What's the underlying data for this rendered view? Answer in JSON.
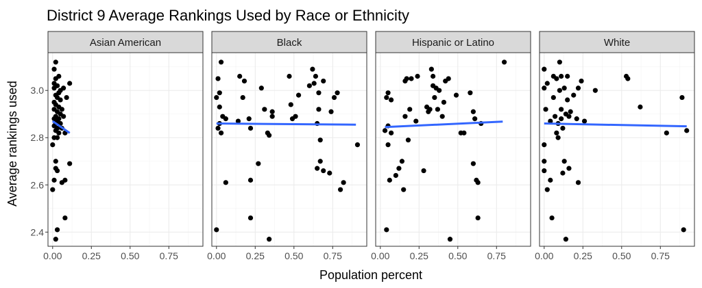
{
  "chart_data": {
    "type": "scatter",
    "title": "District 9 Average Rankings Used by Race or Ethnicity",
    "xlabel": "Population percent",
    "ylabel": "Average rankings used",
    "xlim": [
      -0.03,
      0.97
    ],
    "ylim": [
      2.34,
      3.16
    ],
    "x_ticks": [
      0,
      0.25,
      0.5,
      0.75
    ],
    "x_tick_labels": [
      "0.00",
      "0.25",
      "0.50",
      "0.75"
    ],
    "y_ticks": [
      2.4,
      2.6,
      2.8,
      3.0
    ],
    "y_tick_labels": [
      "2.4",
      "2.6",
      "2.8",
      "3.0"
    ],
    "grid": true,
    "colors": {
      "points": "#000000",
      "trend": "#3366ff",
      "strip": "#d9d9d9",
      "grid": "#ebebeb"
    },
    "panels": [
      {
        "name": "Asian American",
        "points": [
          [
            0.02,
            3.12
          ],
          [
            0.01,
            3.09
          ],
          [
            0.04,
            3.06
          ],
          [
            0.02,
            3.05
          ],
          [
            0.01,
            3.03
          ],
          [
            0.03,
            3.02
          ],
          [
            0.01,
            3.01
          ],
          [
            0.05,
            3.0
          ],
          [
            0.07,
            3.01
          ],
          [
            0.11,
            3.03
          ],
          [
            0.04,
            2.99
          ],
          [
            0.02,
            2.98
          ],
          [
            0.03,
            2.97
          ],
          [
            0.05,
            2.96
          ],
          [
            0.09,
            2.97
          ],
          [
            0.01,
            2.95
          ],
          [
            0.02,
            2.94
          ],
          [
            0.04,
            2.93
          ],
          [
            0.06,
            2.92
          ],
          [
            0.01,
            2.92
          ],
          [
            0.03,
            2.91
          ],
          [
            0.05,
            2.9
          ],
          [
            0.02,
            2.89
          ],
          [
            0.07,
            2.89
          ],
          [
            0.01,
            2.88
          ],
          [
            0.04,
            2.88
          ],
          [
            0.03,
            2.87
          ],
          [
            0.02,
            2.86
          ],
          [
            0.05,
            2.86
          ],
          [
            0.01,
            2.85
          ],
          [
            0.03,
            2.84
          ],
          [
            0.06,
            2.84
          ],
          [
            0.02,
            2.83
          ],
          [
            0.04,
            2.82
          ],
          [
            0.08,
            2.82
          ],
          [
            0.01,
            2.8
          ],
          [
            0.03,
            2.8
          ],
          [
            0.0,
            2.77
          ],
          [
            0.02,
            2.7
          ],
          [
            0.02,
            2.67
          ],
          [
            0.03,
            2.66
          ],
          [
            0.01,
            2.62
          ],
          [
            0.06,
            2.61
          ],
          [
            0.08,
            2.62
          ],
          [
            0.11,
            2.69
          ],
          [
            0.0,
            2.58
          ],
          [
            0.08,
            2.46
          ],
          [
            0.03,
            2.41
          ],
          [
            0.02,
            2.37
          ]
        ],
        "trend": {
          "x": [
            0.0,
            0.11
          ],
          "y": [
            2.87,
            2.82
          ]
        }
      },
      {
        "name": "Black",
        "points": [
          [
            0.03,
            3.12
          ],
          [
            0.01,
            3.05
          ],
          [
            0.02,
            2.99
          ],
          [
            0.0,
            2.97
          ],
          [
            0.02,
            2.93
          ],
          [
            0.04,
            2.89
          ],
          [
            0.06,
            2.88
          ],
          [
            0.02,
            2.86
          ],
          [
            0.01,
            2.84
          ],
          [
            0.03,
            2.82
          ],
          [
            0.06,
            2.61
          ],
          [
            0.0,
            2.41
          ],
          [
            0.15,
            3.06
          ],
          [
            0.18,
            3.04
          ],
          [
            0.14,
            2.87
          ],
          [
            0.17,
            2.97
          ],
          [
            0.21,
            2.88
          ],
          [
            0.22,
            2.84
          ],
          [
            0.22,
            2.62
          ],
          [
            0.22,
            2.46
          ],
          [
            0.27,
            2.69
          ],
          [
            0.29,
            3.01
          ],
          [
            0.31,
            2.92
          ],
          [
            0.33,
            2.82
          ],
          [
            0.34,
            2.81
          ],
          [
            0.36,
            2.91
          ],
          [
            0.36,
            2.89
          ],
          [
            0.34,
            2.37
          ],
          [
            0.47,
            3.06
          ],
          [
            0.48,
            2.94
          ],
          [
            0.49,
            2.88
          ],
          [
            0.51,
            2.89
          ],
          [
            0.53,
            2.98
          ],
          [
            0.62,
            3.09
          ],
          [
            0.6,
            3.02
          ],
          [
            0.63,
            3.03
          ],
          [
            0.64,
            3.06
          ],
          [
            0.66,
            2.99
          ],
          [
            0.69,
            3.04
          ],
          [
            0.66,
            2.92
          ],
          [
            0.65,
            2.86
          ],
          [
            0.67,
            2.79
          ],
          [
            0.67,
            2.7
          ],
          [
            0.65,
            2.67
          ],
          [
            0.69,
            2.66
          ],
          [
            0.73,
            2.65
          ],
          [
            0.76,
            2.97
          ],
          [
            0.78,
            2.99
          ],
          [
            0.74,
            2.91
          ],
          [
            0.8,
            2.58
          ],
          [
            0.82,
            2.61
          ],
          [
            0.91,
            2.77
          ]
        ],
        "trend": {
          "x": [
            0.0,
            0.9
          ],
          "y": [
            2.86,
            2.855
          ]
        }
      },
      {
        "name": "Hispanic or Latino",
        "points": [
          [
            0.04,
            2.97
          ],
          [
            0.05,
            2.99
          ],
          [
            0.07,
            2.96
          ],
          [
            0.05,
            2.85
          ],
          [
            0.03,
            2.83
          ],
          [
            0.07,
            2.82
          ],
          [
            0.05,
            2.77
          ],
          [
            0.06,
            2.62
          ],
          [
            0.1,
            2.64
          ],
          [
            0.12,
            2.67
          ],
          [
            0.14,
            2.7
          ],
          [
            0.15,
            2.58
          ],
          [
            0.04,
            2.41
          ],
          [
            0.16,
            3.04
          ],
          [
            0.17,
            3.05
          ],
          [
            0.2,
            3.05
          ],
          [
            0.24,
            3.06
          ],
          [
            0.19,
            2.92
          ],
          [
            0.16,
            2.89
          ],
          [
            0.18,
            2.79
          ],
          [
            0.23,
            2.87
          ],
          [
            0.28,
            2.66
          ],
          [
            0.3,
            2.93
          ],
          [
            0.32,
            2.92
          ],
          [
            0.33,
            3.09
          ],
          [
            0.34,
            3.06
          ],
          [
            0.34,
            3.02
          ],
          [
            0.36,
            3.01
          ],
          [
            0.35,
            2.97
          ],
          [
            0.38,
            3.0
          ],
          [
            0.31,
            2.91
          ],
          [
            0.37,
            2.92
          ],
          [
            0.4,
            2.89
          ],
          [
            0.42,
            3.04
          ],
          [
            0.41,
            2.95
          ],
          [
            0.44,
            3.05
          ],
          [
            0.49,
            2.98
          ],
          [
            0.52,
            2.82
          ],
          [
            0.54,
            2.82
          ],
          [
            0.58,
            2.99
          ],
          [
            0.6,
            2.91
          ],
          [
            0.61,
            2.88
          ],
          [
            0.6,
            2.69
          ],
          [
            0.62,
            2.62
          ],
          [
            0.63,
            2.61
          ],
          [
            0.63,
            2.46
          ],
          [
            0.65,
            2.86
          ],
          [
            0.45,
            2.37
          ],
          [
            0.8,
            3.12
          ]
        ],
        "trend": {
          "x": [
            0.03,
            0.79
          ],
          "y": [
            2.845,
            2.868
          ]
        }
      },
      {
        "name": "White",
        "points": [
          [
            0.1,
            3.12
          ],
          [
            0.0,
            3.09
          ],
          [
            0.06,
            3.06
          ],
          [
            0.11,
            3.06
          ],
          [
            0.15,
            3.06
          ],
          [
            0.08,
            3.05
          ],
          [
            0.02,
            3.03
          ],
          [
            0.0,
            3.01
          ],
          [
            0.1,
            3.0
          ],
          [
            0.13,
            3.01
          ],
          [
            0.22,
            3.01
          ],
          [
            0.24,
            3.04
          ],
          [
            0.33,
            3.0
          ],
          [
            0.19,
            2.98
          ],
          [
            0.06,
            2.97
          ],
          [
            0.15,
            2.96
          ],
          [
            0.01,
            2.92
          ],
          [
            0.11,
            2.92
          ],
          [
            0.17,
            2.91
          ],
          [
            0.14,
            2.9
          ],
          [
            0.16,
            2.89
          ],
          [
            0.07,
            2.89
          ],
          [
            0.11,
            2.88
          ],
          [
            0.21,
            2.88
          ],
          [
            0.04,
            2.87
          ],
          [
            0.09,
            2.86
          ],
          [
            0.26,
            2.87
          ],
          [
            0.12,
            2.84
          ],
          [
            0.08,
            2.82
          ],
          [
            0.09,
            2.8
          ],
          [
            0.0,
            2.77
          ],
          [
            0.0,
            2.7
          ],
          [
            0.13,
            2.7
          ],
          [
            0.0,
            2.66
          ],
          [
            0.12,
            2.65
          ],
          [
            0.04,
            2.62
          ],
          [
            0.02,
            2.58
          ],
          [
            0.16,
            2.67
          ],
          [
            0.22,
            2.61
          ],
          [
            0.05,
            2.46
          ],
          [
            0.14,
            2.37
          ],
          [
            0.53,
            3.06
          ],
          [
            0.54,
            3.05
          ],
          [
            0.62,
            2.93
          ],
          [
            0.79,
            2.82
          ],
          [
            0.89,
            2.97
          ],
          [
            0.92,
            2.83
          ],
          [
            0.9,
            2.41
          ]
        ],
        "trend": {
          "x": [
            0.0,
            0.92
          ],
          "y": [
            2.86,
            2.848
          ]
        }
      }
    ]
  }
}
